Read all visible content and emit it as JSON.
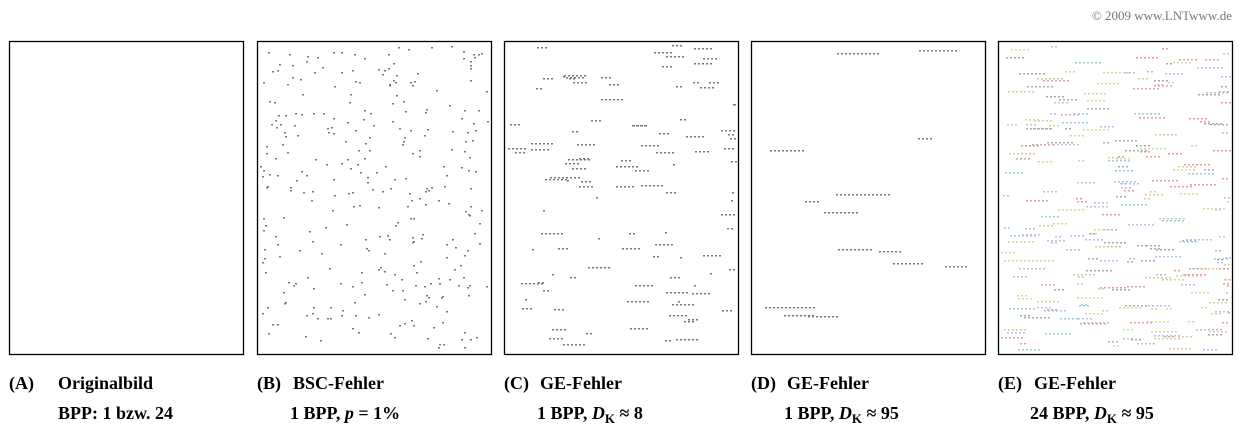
{
  "copyright": "© 2009 www.LNTwww.de",
  "panels": [
    {
      "label": "(A)",
      "title": "Originalbild",
      "detail": [
        {
          "text": "BPP: 1 bzw. 24"
        }
      ]
    },
    {
      "label": "(B)",
      "title": "BSC-Fehler",
      "detail": [
        {
          "text": "1 BPP, "
        },
        {
          "text": "p",
          "style": "italic"
        },
        {
          "text": " = 1%"
        }
      ]
    },
    {
      "label": "(C)",
      "title": "GE-Fehler",
      "detail": [
        {
          "text": "1 BPP, "
        },
        {
          "text": "D",
          "style": "italic"
        },
        {
          "text": "K",
          "style": "sub"
        },
        {
          "text": " ≈ 8"
        }
      ]
    },
    {
      "label": "(D)",
      "title": "GE-Fehler",
      "detail": [
        {
          "text": "1 BPP, "
        },
        {
          "text": "D",
          "style": "italic"
        },
        {
          "text": "K",
          "style": "sub"
        },
        {
          "text": " ≈ 95"
        }
      ]
    },
    {
      "label": "(E)",
      "title": "GE-Fehler",
      "detail": [
        {
          "text": "24 BPP, "
        },
        {
          "text": "D",
          "style": "italic"
        },
        {
          "text": "K",
          "style": "sub"
        },
        {
          "text": " ≈ 95"
        }
      ]
    }
  ]
}
